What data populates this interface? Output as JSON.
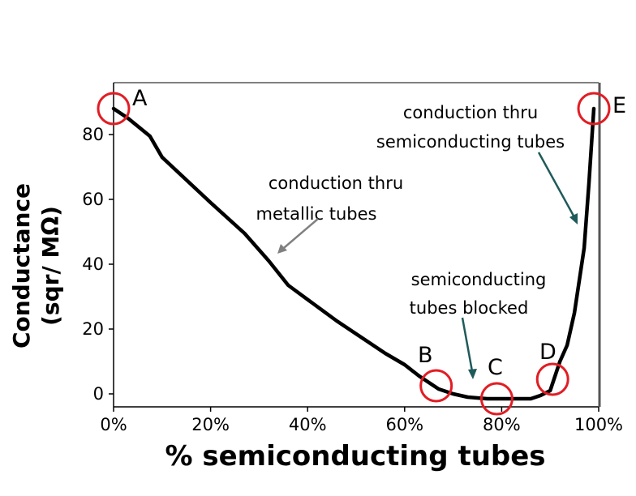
{
  "chart_data": {
    "type": "line",
    "title": "",
    "xlabel": "% semiconducting tubes",
    "ylabel_line1": "Conductance",
    "ylabel_line2": "(sqr/ MΩ)",
    "xlim": [
      0,
      100
    ],
    "ylim": [
      -4,
      96
    ],
    "x_ticks": [
      0,
      20,
      40,
      60,
      80,
      100
    ],
    "x_tick_labels": [
      "0%",
      "20%",
      "40%",
      "60%",
      "80%",
      "100%"
    ],
    "y_ticks": [
      0,
      20,
      40,
      60,
      80
    ],
    "y_tick_labels": [
      "0",
      "20",
      "40",
      "60",
      "80"
    ],
    "grid": false,
    "series": [
      {
        "color": "#000000",
        "x": [
          0,
          3,
          7.5,
          10,
          15,
          20,
          27,
          32,
          36,
          41,
          46,
          52,
          56,
          60,
          63,
          65,
          67,
          70,
          73,
          77,
          80,
          83,
          86,
          88,
          90,
          92,
          93.5,
          95,
          97,
          98,
          99
        ],
        "y": [
          88,
          85,
          79.5,
          73,
          66,
          59,
          49.5,
          41,
          33.5,
          28,
          22.5,
          16.5,
          12.5,
          9,
          5.5,
          3.5,
          1.5,
          0,
          -1,
          -1.5,
          -1.5,
          -1.5,
          -1.5,
          -0.5,
          1,
          10,
          15,
          25,
          45,
          65,
          88
        ]
      }
    ],
    "highlight_points": [
      {
        "label": "A",
        "x": 0,
        "y": 88
      },
      {
        "label": "B",
        "x": 66.5,
        "y": 2.5
      },
      {
        "label": "C",
        "x": 79,
        "y": -1.5
      },
      {
        "label": "D",
        "x": 90.5,
        "y": 4.5
      },
      {
        "label": "E",
        "x": 99,
        "y": 88
      }
    ],
    "annotations": [
      {
        "lines": [
          "conduction thru",
          "metallic tubes"
        ],
        "arrow_color": "#808080"
      },
      {
        "lines": [
          "semiconducting",
          "tubes blocked"
        ],
        "arrow_color": "#1f5a5a"
      },
      {
        "lines": [
          "conduction thru",
          "semiconducting tubes"
        ],
        "arrow_color": "#1f5a5a"
      }
    ],
    "colors": {
      "line": "#000000",
      "circle": "#e11d24"
    }
  }
}
